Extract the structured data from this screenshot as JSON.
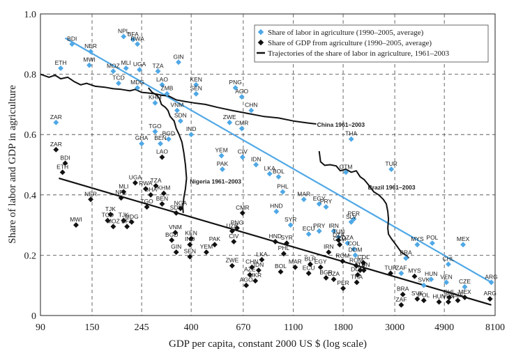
{
  "chart_data": {
    "type": "scatter",
    "xlabel": "GDP per capita, constant 2000 US $ (log scale)",
    "ylabel": "Share of labor and GDP in agriculture",
    "x_scale": "log",
    "xlim": [
      90,
      8100
    ],
    "ylim": [
      0,
      1.0
    ],
    "x_ticks": [
      90,
      150,
      245,
      400,
      670,
      1100,
      1800,
      3000,
      4900,
      8100
    ],
    "x_tick_labels": [
      "90",
      "150",
      "245",
      "400",
      "670",
      "1100",
      "1800",
      "3000",
      "4900",
      "8100"
    ],
    "y_ticks": [
      0,
      0.2,
      0.4,
      0.6,
      0.8,
      1.0
    ],
    "y_tick_labels": [
      "0",
      "0.2",
      "0.4",
      "0.6",
      "0.8",
      "1.0"
    ],
    "grid": "dashed",
    "legend_position": "top-right",
    "legend": [
      "Share of labor in agriculture (1990–2005, average)",
      "Share of GDP from agriculture (1990–2005, average)",
      "Trajectories of the share of labor in agriculture, 1961–2003"
    ],
    "colors": {
      "labor": "#4fa8e6",
      "gdp": "#111111",
      "trend_labor": "#4fa8e6",
      "trend_gdp": "#111111",
      "trajectory": "#111111"
    },
    "fit_lines": {
      "labor": [
        [
          115,
          0.92
        ],
        [
          7800,
          0.11
        ]
      ],
      "gdp": [
        [
          108,
          0.455
        ],
        [
          7800,
          0.035
        ]
      ]
    },
    "labor_points": [
      {
        "label": "BDI",
        "x": 123,
        "y": 0.9
      },
      {
        "label": "NER",
        "x": 148,
        "y": 0.875
      },
      {
        "label": "NPL",
        "x": 205,
        "y": 0.925
      },
      {
        "label": "BFA",
        "x": 225,
        "y": 0.915
      },
      {
        "label": "RWA",
        "x": 235,
        "y": 0.9
      },
      {
        "label": "ETH",
        "x": 110,
        "y": 0.82
      },
      {
        "label": "MWI",
        "x": 146,
        "y": 0.83
      },
      {
        "label": "MOZ",
        "x": 185,
        "y": 0.81
      },
      {
        "label": "MLI",
        "x": 210,
        "y": 0.82
      },
      {
        "label": "UGA",
        "x": 240,
        "y": 0.815
      },
      {
        "label": "TZA",
        "x": 288,
        "y": 0.81
      },
      {
        "label": "GIN",
        "x": 353,
        "y": 0.84
      },
      {
        "label": "TCD",
        "x": 195,
        "y": 0.77
      },
      {
        "label": "MDG",
        "x": 235,
        "y": 0.755
      },
      {
        "label": "LAO",
        "x": 300,
        "y": 0.765
      },
      {
        "label": "KEN",
        "x": 420,
        "y": 0.765
      },
      {
        "label": "ZMB",
        "x": 315,
        "y": 0.735
      },
      {
        "label": "KHM",
        "x": 280,
        "y": 0.705
      },
      {
        "label": "SEN",
        "x": 420,
        "y": 0.735
      },
      {
        "label": "PNG",
        "x": 620,
        "y": 0.755
      },
      {
        "label": "AGO",
        "x": 660,
        "y": 0.725
      },
      {
        "label": "VNM",
        "x": 348,
        "y": 0.68
      },
      {
        "label": "CHN",
        "x": 725,
        "y": 0.68
      },
      {
        "label": "SDN",
        "x": 360,
        "y": 0.645
      },
      {
        "label": "ZWE",
        "x": 585,
        "y": 0.64
      },
      {
        "label": "CMR",
        "x": 660,
        "y": 0.62
      },
      {
        "label": "ZAR",
        "x": 105,
        "y": 0.64
      },
      {
        "label": "TGO",
        "x": 280,
        "y": 0.61
      },
      {
        "label": "THA",
        "x": 1950,
        "y": 0.585
      },
      {
        "label": "GHA",
        "x": 245,
        "y": 0.57
      },
      {
        "label": "BEN",
        "x": 295,
        "y": 0.57
      },
      {
        "label": "BGD",
        "x": 320,
        "y": 0.585
      },
      {
        "label": "IND",
        "x": 400,
        "y": 0.6
      },
      {
        "label": "CIV",
        "x": 665,
        "y": 0.525
      },
      {
        "label": "IDN",
        "x": 760,
        "y": 0.5
      },
      {
        "label": "YEM",
        "x": 540,
        "y": 0.53
      },
      {
        "label": "PAK",
        "x": 545,
        "y": 0.485
      },
      {
        "label": "LKA",
        "x": 870,
        "y": 0.47
      },
      {
        "label": "BOL",
        "x": 950,
        "y": 0.46
      },
      {
        "label": "TUR",
        "x": 2900,
        "y": 0.485
      },
      {
        "label": "GTM",
        "x": 1850,
        "y": 0.475
      },
      {
        "label": "PHL",
        "x": 990,
        "y": 0.41
      },
      {
        "label": "MAR",
        "x": 1220,
        "y": 0.385
      },
      {
        "label": "EGY",
        "x": 1420,
        "y": 0.37
      },
      {
        "label": "PRY",
        "x": 1520,
        "y": 0.36
      },
      {
        "label": "HND",
        "x": 930,
        "y": 0.345
      },
      {
        "label": "SYR",
        "x": 1070,
        "y": 0.3
      },
      {
        "label": "PER",
        "x": 2000,
        "y": 0.32
      },
      {
        "label": "SLV",
        "x": 1950,
        "y": 0.31
      },
      {
        "label": "ECU",
        "x": 1280,
        "y": 0.27
      },
      {
        "label": "PRY",
        "x": 1420,
        "y": 0.28
      },
      {
        "label": "IRN",
        "x": 1640,
        "y": 0.28
      },
      {
        "label": "TUN",
        "x": 1720,
        "y": 0.26
      },
      {
        "label": "DZA",
        "x": 1880,
        "y": 0.24
      },
      {
        "label": "COL",
        "x": 2000,
        "y": 0.22
      },
      {
        "label": "DOM",
        "x": 2030,
        "y": 0.2
      },
      {
        "label": "MYS",
        "x": 3750,
        "y": 0.235
      },
      {
        "label": "POL",
        "x": 4350,
        "y": 0.24
      },
      {
        "label": "MEX",
        "x": 5900,
        "y": 0.235
      },
      {
        "label": "BRA",
        "x": 3350,
        "y": 0.19
      },
      {
        "label": "CHL",
        "x": 5100,
        "y": 0.17
      },
      {
        "label": "ZAF",
        "x": 3200,
        "y": 0.14
      },
      {
        "label": "HUN",
        "x": 4300,
        "y": 0.12
      },
      {
        "label": "VEN",
        "x": 5000,
        "y": 0.11
      },
      {
        "label": "CZE",
        "x": 6000,
        "y": 0.095
      },
      {
        "label": "SVK",
        "x": 4000,
        "y": 0.1
      },
      {
        "label": "ARG",
        "x": 7800,
        "y": 0.11
      }
    ],
    "gdp_points": [
      {
        "label": "ZAR",
        "x": 105,
        "y": 0.55
      },
      {
        "label": "BDI",
        "x": 115,
        "y": 0.505
      },
      {
        "label": "ETH",
        "x": 112,
        "y": 0.475
      },
      {
        "label": "UGA",
        "x": 230,
        "y": 0.44
      },
      {
        "label": "RWA",
        "x": 255,
        "y": 0.42
      },
      {
        "label": "TZA",
        "x": 282,
        "y": 0.43
      },
      {
        "label": "MLI",
        "x": 205,
        "y": 0.41
      },
      {
        "label": "NPL",
        "x": 200,
        "y": 0.39
      },
      {
        "label": "GHA",
        "x": 268,
        "y": 0.4
      },
      {
        "label": "KHM",
        "x": 305,
        "y": 0.405
      },
      {
        "label": "NER",
        "x": 148,
        "y": 0.385
      },
      {
        "label": "BEN",
        "x": 300,
        "y": 0.37
      },
      {
        "label": "TGO",
        "x": 258,
        "y": 0.36
      },
      {
        "label": "SDN",
        "x": 345,
        "y": 0.34
      },
      {
        "label": "NGA",
        "x": 360,
        "y": 0.355
      },
      {
        "label": "TJK",
        "x": 180,
        "y": 0.335
      },
      {
        "label": "LAO",
        "x": 300,
        "y": 0.525
      },
      {
        "label": "TCD",
        "x": 175,
        "y": 0.315
      },
      {
        "label": "TJK",
        "x": 205,
        "y": 0.315
      },
      {
        "label": "MDG",
        "x": 222,
        "y": 0.31
      },
      {
        "label": "MWI",
        "x": 128,
        "y": 0.3
      },
      {
        "label": "MOZ",
        "x": 185,
        "y": 0.295
      },
      {
        "label": "BFA",
        "x": 212,
        "y": 0.295
      },
      {
        "label": "VNM",
        "x": 342,
        "y": 0.275
      },
      {
        "label": "BGD",
        "x": 330,
        "y": 0.25
      },
      {
        "label": "KEN",
        "x": 400,
        "y": 0.255
      },
      {
        "label": "IND",
        "x": 395,
        "y": 0.235
      },
      {
        "label": "GIN",
        "x": 345,
        "y": 0.21
      },
      {
        "label": "SEN",
        "x": 395,
        "y": 0.195
      },
      {
        "label": "YEM",
        "x": 465,
        "y": 0.21
      },
      {
        "label": "PAK",
        "x": 505,
        "y": 0.235
      },
      {
        "label": "PNG",
        "x": 630,
        "y": 0.29
      },
      {
        "label": "UZB",
        "x": 600,
        "y": 0.28
      },
      {
        "label": "CMR",
        "x": 665,
        "y": 0.34
      },
      {
        "label": "CIV",
        "x": 610,
        "y": 0.245
      },
      {
        "label": "ZWE",
        "x": 600,
        "y": 0.165
      },
      {
        "label": "CHN",
        "x": 730,
        "y": 0.16
      },
      {
        "label": "AZE",
        "x": 715,
        "y": 0.135
      },
      {
        "label": "AGO",
        "x": 690,
        "y": 0.1
      },
      {
        "label": "UKR",
        "x": 755,
        "y": 0.115
      },
      {
        "label": "IDN",
        "x": 780,
        "y": 0.15
      },
      {
        "label": "LKA",
        "x": 805,
        "y": 0.185
      },
      {
        "label": "HND",
        "x": 920,
        "y": 0.245
      },
      {
        "label": "SYR",
        "x": 1030,
        "y": 0.24
      },
      {
        "label": "PHL",
        "x": 1000,
        "y": 0.205
      },
      {
        "label": "BOL",
        "x": 970,
        "y": 0.145
      },
      {
        "label": "MAR",
        "x": 1120,
        "y": 0.16
      },
      {
        "label": "ECU",
        "x": 1280,
        "y": 0.14
      },
      {
        "label": "BLR",
        "x": 1300,
        "y": 0.17
      },
      {
        "label": "EGY",
        "x": 1440,
        "y": 0.16
      },
      {
        "label": "IRN",
        "x": 1560,
        "y": 0.21
      },
      {
        "label": "GTM",
        "x": 1740,
        "y": 0.235
      },
      {
        "label": "DZA",
        "x": 1720,
        "y": 0.25
      },
      {
        "label": "ROM",
        "x": 1790,
        "y": 0.18
      },
      {
        "label": "BGR",
        "x": 1520,
        "y": 0.125
      },
      {
        "label": "DZA",
        "x": 1640,
        "y": 0.12
      },
      {
        "label": "PER",
        "x": 1800,
        "y": 0.09
      },
      {
        "label": "THA",
        "x": 2060,
        "y": 0.11
      },
      {
        "label": "DOM",
        "x": 2080,
        "y": 0.135
      },
      {
        "label": "SLV",
        "x": 2130,
        "y": 0.15
      },
      {
        "label": "TUN",
        "x": 2210,
        "y": 0.15
      },
      {
        "label": "ROM",
        "x": 2050,
        "y": 0.165
      },
      {
        "label": "COL",
        "x": 2200,
        "y": 0.175
      },
      {
        "label": "TUR",
        "x": 2880,
        "y": 0.14
      },
      {
        "label": "MYS",
        "x": 3650,
        "y": 0.13
      },
      {
        "label": "BRA",
        "x": 3250,
        "y": 0.07
      },
      {
        "label": "SVK",
        "x": 3750,
        "y": 0.055
      },
      {
        "label": "ZAF",
        "x": 3200,
        "y": 0.035
      },
      {
        "label": "POL",
        "x": 4000,
        "y": 0.05
      },
      {
        "label": "HUN",
        "x": 4650,
        "y": 0.045
      },
      {
        "label": "CHL",
        "x": 5150,
        "y": 0.06
      },
      {
        "label": "VEN",
        "x": 5100,
        "y": 0.045
      },
      {
        "label": "CZE",
        "x": 5600,
        "y": 0.05
      },
      {
        "label": "MEX",
        "x": 6000,
        "y": 0.06
      },
      {
        "label": "ARG",
        "x": 7700,
        "y": 0.055
      }
    ],
    "trajectories": [
      {
        "name": "China 1961–2003",
        "points": [
          [
            90,
            0.8
          ],
          [
            98,
            0.79
          ],
          [
            104,
            0.797
          ],
          [
            110,
            0.785
          ],
          [
            118,
            0.79
          ],
          [
            126,
            0.775
          ],
          [
            134,
            0.765
          ],
          [
            142,
            0.77
          ],
          [
            155,
            0.76
          ],
          [
            170,
            0.757
          ],
          [
            185,
            0.752
          ],
          [
            200,
            0.75
          ],
          [
            218,
            0.745
          ],
          [
            230,
            0.75
          ],
          [
            245,
            0.74
          ],
          [
            260,
            0.738
          ],
          [
            280,
            0.735
          ],
          [
            300,
            0.73
          ],
          [
            320,
            0.728
          ],
          [
            345,
            0.715
          ],
          [
            375,
            0.71
          ],
          [
            410,
            0.705
          ],
          [
            460,
            0.7
          ],
          [
            520,
            0.69
          ],
          [
            600,
            0.68
          ],
          [
            700,
            0.67
          ],
          [
            820,
            0.66
          ],
          [
            950,
            0.655
          ],
          [
            1100,
            0.645
          ],
          [
            1280,
            0.638
          ],
          [
            1380,
            0.635
          ]
        ]
      },
      {
        "name": "Nigeria 1961–2003",
        "points": [
          [
            262,
            0.755
          ],
          [
            272,
            0.74
          ],
          [
            285,
            0.73
          ],
          [
            292,
            0.72
          ],
          [
            298,
            0.7
          ],
          [
            310,
            0.69
          ],
          [
            318,
            0.68
          ],
          [
            325,
            0.66
          ],
          [
            338,
            0.645
          ],
          [
            345,
            0.62
          ],
          [
            355,
            0.6
          ],
          [
            365,
            0.575
          ],
          [
            372,
            0.54
          ],
          [
            378,
            0.5
          ],
          [
            382,
            0.455
          ],
          [
            378,
            0.42
          ],
          [
            372,
            0.39
          ],
          [
            368,
            0.36
          ],
          [
            370,
            0.34
          ]
        ]
      },
      {
        "name": "Brazil 1961–2003",
        "points": [
          [
            1420,
            0.545
          ],
          [
            1440,
            0.51
          ],
          [
            1500,
            0.498
          ],
          [
            1580,
            0.5
          ],
          [
            1680,
            0.496
          ],
          [
            1750,
            0.48
          ],
          [
            1850,
            0.485
          ],
          [
            1950,
            0.475
          ],
          [
            2050,
            0.48
          ],
          [
            2130,
            0.46
          ],
          [
            2220,
            0.45
          ],
          [
            2330,
            0.43
          ],
          [
            2440,
            0.41
          ],
          [
            2560,
            0.4
          ],
          [
            2680,
            0.385
          ],
          [
            2760,
            0.37
          ],
          [
            2800,
            0.345
          ],
          [
            2820,
            0.32
          ],
          [
            2800,
            0.29
          ],
          [
            2820,
            0.27
          ],
          [
            2900,
            0.255
          ],
          [
            3000,
            0.24
          ],
          [
            3100,
            0.225
          ],
          [
            3200,
            0.21
          ],
          [
            3350,
            0.2
          ],
          [
            3450,
            0.19
          ]
        ]
      }
    ],
    "trajectory_labels": [
      {
        "text": "China 1961–2003",
        "x": 1390,
        "y": 0.633
      },
      {
        "text": "Nigeria 1961–2003",
        "x": 395,
        "y": 0.445
      },
      {
        "text": "Brazil 1961–2003",
        "x": 2300,
        "y": 0.425
      }
    ]
  }
}
